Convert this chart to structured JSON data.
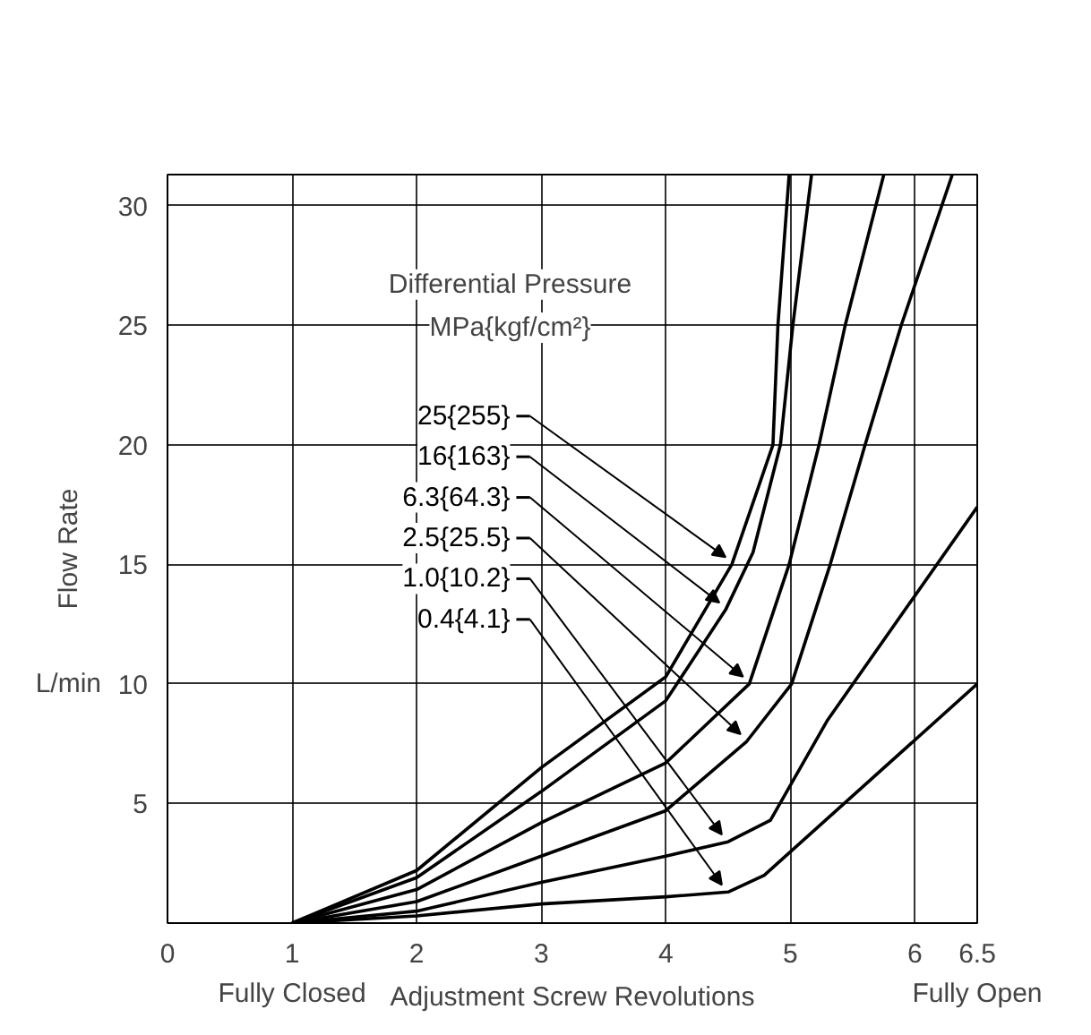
{
  "chart_data": {
    "type": "line",
    "xlabel": "Adjustment Screw Revolutions",
    "ylabel": "Flow Rate",
    "annotations": [
      "Differential Pressure",
      "MPa{kgf/cm²}",
      "L/min",
      "Fully Closed",
      "Fully Open"
    ],
    "series": [
      {
        "name": "25{255}",
        "color": "#000000",
        "x": [
          1,
          2,
          3,
          4,
          4.53,
          4.86,
          4.9,
          4.99
        ],
        "values": [
          0,
          2.2,
          6.5,
          10.3,
          15,
          20,
          25,
          31.3
        ]
      },
      {
        "name": "16{163}",
        "color": "#000000",
        "x": [
          1,
          2,
          3,
          4,
          4.48,
          4.7,
          4.92,
          5.02,
          5.17
        ],
        "values": [
          0,
          1.9,
          5.5,
          9.3,
          13.1,
          15.5,
          20,
          25,
          31.3
        ]
      },
      {
        "name": "6.3{64.3}",
        "color": "#000000",
        "x": [
          1,
          2,
          3,
          4,
          4.67,
          4.99,
          5.23,
          5.44,
          5.75
        ],
        "values": [
          0,
          1.4,
          4.2,
          6.7,
          10,
          15,
          20,
          25,
          31.3
        ]
      },
      {
        "name": "2.5{25.5}",
        "color": "#000000",
        "x": [
          1,
          2,
          3,
          4,
          4.65,
          5.01,
          5.32,
          5.6,
          5.89,
          6.3
        ],
        "values": [
          0,
          0.9,
          2.8,
          4.7,
          7.6,
          10,
          15,
          20,
          25,
          31.3
        ]
      },
      {
        "name": "1.0{10.2}",
        "color": "#000000",
        "x": [
          1,
          2,
          3,
          4,
          4.5,
          4.84,
          5.3,
          6.5
        ],
        "values": [
          0,
          0.5,
          1.7,
          2.8,
          3.4,
          4.3,
          8.5,
          17.4
        ]
      },
      {
        "name": "0.4{4.1}",
        "color": "#000000",
        "x": [
          1,
          2,
          3,
          4,
          4.5,
          4.79,
          5.56,
          6.5
        ],
        "values": [
          0,
          0.3,
          0.8,
          1.1,
          1.3,
          2.0,
          5.6,
          10
        ]
      }
    ],
    "xlim": [
      0,
      6.5
    ],
    "xticks": [
      0,
      1,
      2,
      3,
      4,
      5,
      6,
      6.5
    ],
    "ylim": [
      0,
      31.3
    ],
    "yticks": [
      5,
      10,
      15,
      20,
      25,
      30
    ],
    "grid": true,
    "legend": "left",
    "line_style": "solid",
    "marker": "none"
  }
}
